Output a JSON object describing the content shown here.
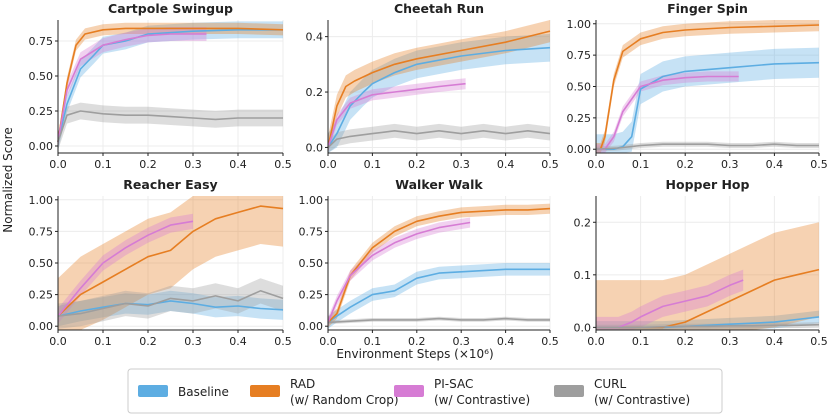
{
  "figure": {
    "ylabel": "Normalized Score",
    "xlabel": "Environment Steps (×10⁶)",
    "x_ticks": [
      "0.0",
      "0.1",
      "0.2",
      "0.3",
      "0.4",
      "0.5"
    ]
  },
  "colors": {
    "Baseline": "#5dade2",
    "RAD": "#e67e22",
    "PI-SAC": "#d67cd4",
    "CURL": "#9e9e9e"
  },
  "legend": [
    {
      "key": "Baseline",
      "line1": "Baseline",
      "line2": ""
    },
    {
      "key": "RAD",
      "line1": "RAD",
      "line2": "(w/ Random Crop)"
    },
    {
      "key": "PI-SAC",
      "line1": "PI-SAC",
      "line2": "(w/ Contrastive)"
    },
    {
      "key": "CURL",
      "line1": "CURL",
      "line2": "(w/ Contrastive)"
    }
  ],
  "chart_data": [
    {
      "type": "line",
      "title": "Cartpole Swingup",
      "xlim": [
        0,
        0.5
      ],
      "ylim": [
        -0.05,
        0.9
      ],
      "yticks": [
        0,
        0.25,
        0.5,
        0.75
      ],
      "ytick_labels": [
        "0.00",
        "0.25",
        "0.50",
        "0.75"
      ],
      "series": [
        {
          "name": "Baseline",
          "x": [
            0,
            0.02,
            0.05,
            0.08,
            0.1,
            0.15,
            0.2,
            0.3,
            0.4,
            0.5
          ],
          "y": [
            0.03,
            0.3,
            0.55,
            0.65,
            0.72,
            0.75,
            0.8,
            0.82,
            0.83,
            0.83
          ],
          "band": 0.06
        },
        {
          "name": "RAD",
          "x": [
            0,
            0.02,
            0.04,
            0.06,
            0.1,
            0.15,
            0.2,
            0.3,
            0.4,
            0.5
          ],
          "y": [
            0.03,
            0.45,
            0.72,
            0.8,
            0.83,
            0.84,
            0.84,
            0.84,
            0.84,
            0.83
          ],
          "band": 0.04
        },
        {
          "name": "PI-SAC",
          "x": [
            0,
            0.02,
            0.05,
            0.1,
            0.15,
            0.2,
            0.25,
            0.33
          ],
          "y": [
            0.03,
            0.4,
            0.62,
            0.72,
            0.76,
            0.79,
            0.8,
            0.8
          ],
          "band": 0.05
        },
        {
          "name": "CURL",
          "x": [
            0,
            0.02,
            0.05,
            0.1,
            0.15,
            0.2,
            0.25,
            0.3,
            0.35,
            0.4,
            0.45,
            0.5
          ],
          "y": [
            0.03,
            0.22,
            0.25,
            0.23,
            0.22,
            0.22,
            0.21,
            0.2,
            0.19,
            0.2,
            0.2,
            0.2
          ],
          "band": 0.06
        }
      ]
    },
    {
      "type": "line",
      "title": "Cheetah Run",
      "xlim": [
        0,
        0.5
      ],
      "ylim": [
        -0.02,
        0.46
      ],
      "yticks": [
        0,
        0.2,
        0.4
      ],
      "ytick_labels": [
        "0.0",
        "0.2",
        "0.4"
      ],
      "series": [
        {
          "name": "Baseline",
          "x": [
            0,
            0.02,
            0.05,
            0.08,
            0.1,
            0.15,
            0.2,
            0.3,
            0.4,
            0.5
          ],
          "y": [
            0.0,
            0.05,
            0.15,
            0.2,
            0.23,
            0.27,
            0.3,
            0.33,
            0.35,
            0.36
          ],
          "band": 0.05
        },
        {
          "name": "RAD",
          "x": [
            0,
            0.02,
            0.04,
            0.06,
            0.1,
            0.15,
            0.2,
            0.3,
            0.4,
            0.5
          ],
          "y": [
            0.0,
            0.15,
            0.22,
            0.24,
            0.27,
            0.3,
            0.32,
            0.35,
            0.38,
            0.42
          ],
          "band": 0.04
        },
        {
          "name": "PI-SAC",
          "x": [
            0,
            0.02,
            0.05,
            0.1,
            0.15,
            0.2,
            0.25,
            0.31
          ],
          "y": [
            0.0,
            0.1,
            0.16,
            0.19,
            0.2,
            0.21,
            0.22,
            0.23
          ],
          "band": 0.02
        },
        {
          "name": "CURL",
          "x": [
            0,
            0.02,
            0.05,
            0.1,
            0.15,
            0.2,
            0.25,
            0.3,
            0.35,
            0.4,
            0.45,
            0.5
          ],
          "y": [
            0.0,
            0.03,
            0.04,
            0.05,
            0.06,
            0.05,
            0.06,
            0.05,
            0.06,
            0.05,
            0.06,
            0.05
          ],
          "band": 0.025
        }
      ]
    },
    {
      "type": "line",
      "title": "Finger Spin",
      "xlim": [
        0,
        0.5
      ],
      "ylim": [
        -0.03,
        1.03
      ],
      "yticks": [
        0,
        0.25,
        0.5,
        0.75,
        1.0
      ],
      "ytick_labels": [
        "0.00",
        "0.25",
        "0.50",
        "0.75",
        "1.00"
      ],
      "series": [
        {
          "name": "Baseline",
          "x": [
            0,
            0.04,
            0.06,
            0.08,
            0.1,
            0.15,
            0.2,
            0.3,
            0.4,
            0.5
          ],
          "y": [
            0.0,
            0.0,
            0.02,
            0.1,
            0.48,
            0.58,
            0.62,
            0.65,
            0.68,
            0.69
          ],
          "band": 0.12
        },
        {
          "name": "RAD",
          "x": [
            0,
            0.01,
            0.02,
            0.04,
            0.06,
            0.1,
            0.15,
            0.2,
            0.3,
            0.4,
            0.5
          ],
          "y": [
            0.0,
            0.0,
            0.1,
            0.55,
            0.78,
            0.88,
            0.93,
            0.95,
            0.97,
            0.98,
            0.99
          ],
          "band": 0.05
        },
        {
          "name": "PI-SAC",
          "x": [
            0,
            0.02,
            0.04,
            0.06,
            0.1,
            0.15,
            0.2,
            0.25,
            0.32
          ],
          "y": [
            0.0,
            0.0,
            0.1,
            0.3,
            0.5,
            0.55,
            0.57,
            0.58,
            0.58
          ],
          "band": 0.04
        },
        {
          "name": "CURL",
          "x": [
            0,
            0.05,
            0.1,
            0.15,
            0.2,
            0.25,
            0.3,
            0.35,
            0.4,
            0.45,
            0.5
          ],
          "y": [
            0.0,
            0.01,
            0.03,
            0.04,
            0.04,
            0.04,
            0.03,
            0.03,
            0.04,
            0.03,
            0.03
          ],
          "band": 0.02
        }
      ]
    },
    {
      "type": "line",
      "title": "Reacher Easy",
      "xlim": [
        0,
        0.5
      ],
      "ylim": [
        -0.03,
        1.03
      ],
      "yticks": [
        0,
        0.25,
        0.5,
        0.75,
        1.0
      ],
      "ytick_labels": [
        "0.00",
        "0.25",
        "0.50",
        "0.75",
        "1.00"
      ],
      "series": [
        {
          "name": "Baseline",
          "x": [
            0,
            0.05,
            0.1,
            0.15,
            0.2,
            0.25,
            0.3,
            0.35,
            0.4,
            0.45,
            0.5
          ],
          "y": [
            0.08,
            0.12,
            0.15,
            0.18,
            0.17,
            0.2,
            0.18,
            0.15,
            0.16,
            0.14,
            0.13
          ],
          "band": 0.08
        },
        {
          "name": "RAD",
          "x": [
            0,
            0.05,
            0.1,
            0.15,
            0.2,
            0.25,
            0.3,
            0.35,
            0.4,
            0.45,
            0.5
          ],
          "y": [
            0.08,
            0.25,
            0.35,
            0.45,
            0.55,
            0.6,
            0.75,
            0.85,
            0.9,
            0.95,
            0.93
          ],
          "band": 0.3
        },
        {
          "name": "PI-SAC",
          "x": [
            0,
            0.05,
            0.1,
            0.15,
            0.2,
            0.25,
            0.3
          ],
          "y": [
            0.08,
            0.3,
            0.5,
            0.62,
            0.72,
            0.8,
            0.83
          ],
          "band": 0.06
        },
        {
          "name": "CURL",
          "x": [
            0,
            0.05,
            0.1,
            0.15,
            0.2,
            0.25,
            0.3,
            0.35,
            0.4,
            0.45,
            0.5
          ],
          "y": [
            0.08,
            0.1,
            0.14,
            0.18,
            0.16,
            0.22,
            0.2,
            0.24,
            0.2,
            0.28,
            0.22
          ],
          "band": 0.1
        }
      ]
    },
    {
      "type": "line",
      "title": "Walker Walk",
      "xlim": [
        0,
        0.5
      ],
      "ylim": [
        -0.03,
        1.03
      ],
      "yticks": [
        0,
        0.25,
        0.5,
        0.75,
        1.0
      ],
      "ytick_labels": [
        "0.00",
        "0.25",
        "0.50",
        "0.75",
        "1.00"
      ],
      "series": [
        {
          "name": "Baseline",
          "x": [
            0,
            0.02,
            0.05,
            0.1,
            0.15,
            0.2,
            0.25,
            0.3,
            0.35,
            0.4,
            0.45,
            0.5
          ],
          "y": [
            0.03,
            0.08,
            0.15,
            0.25,
            0.28,
            0.38,
            0.42,
            0.43,
            0.44,
            0.45,
            0.45,
            0.45
          ],
          "band": 0.05
        },
        {
          "name": "RAD",
          "x": [
            0,
            0.02,
            0.05,
            0.1,
            0.15,
            0.2,
            0.25,
            0.3,
            0.35,
            0.4,
            0.45,
            0.5
          ],
          "y": [
            0.03,
            0.1,
            0.4,
            0.62,
            0.75,
            0.83,
            0.87,
            0.9,
            0.91,
            0.92,
            0.92,
            0.93
          ],
          "band": 0.04
        },
        {
          "name": "PI-SAC",
          "x": [
            0,
            0.02,
            0.05,
            0.1,
            0.15,
            0.2,
            0.25,
            0.32
          ],
          "y": [
            0.03,
            0.2,
            0.4,
            0.56,
            0.66,
            0.73,
            0.78,
            0.82
          ],
          "band": 0.04
        },
        {
          "name": "CURL",
          "x": [
            0,
            0.05,
            0.1,
            0.15,
            0.2,
            0.25,
            0.3,
            0.35,
            0.4,
            0.45,
            0.5
          ],
          "y": [
            0.03,
            0.04,
            0.05,
            0.05,
            0.05,
            0.06,
            0.05,
            0.05,
            0.06,
            0.05,
            0.05
          ],
          "band": 0.015
        }
      ]
    },
    {
      "type": "line",
      "title": "Hopper Hop",
      "xlim": [
        0,
        0.5
      ],
      "ylim": [
        -0.005,
        0.25
      ],
      "yticks": [
        0,
        0.1,
        0.2
      ],
      "ytick_labels": [
        "0.0",
        "0.1",
        "0.2"
      ],
      "series": [
        {
          "name": "Baseline",
          "x": [
            0,
            0.05,
            0.1,
            0.15,
            0.2,
            0.25,
            0.3,
            0.35,
            0.4,
            0.45,
            0.5
          ],
          "y": [
            0.0,
            0.0,
            0.0,
            0.0,
            0.002,
            0.004,
            0.006,
            0.008,
            0.01,
            0.015,
            0.02
          ],
          "band": 0.012
        },
        {
          "name": "RAD",
          "x": [
            0,
            0.15,
            0.2,
            0.25,
            0.3,
            0.35,
            0.4,
            0.45,
            0.5
          ],
          "y": [
            0.0,
            0.0,
            0.01,
            0.03,
            0.05,
            0.07,
            0.09,
            0.1,
            0.11
          ],
          "band": 0.09
        },
        {
          "name": "PI-SAC",
          "x": [
            0,
            0.05,
            0.08,
            0.1,
            0.15,
            0.2,
            0.25,
            0.3,
            0.33
          ],
          "y": [
            0.0,
            0.0,
            0.01,
            0.02,
            0.04,
            0.05,
            0.06,
            0.08,
            0.09
          ],
          "band": 0.02
        },
        {
          "name": "CURL",
          "x": [
            0,
            0.1,
            0.15,
            0.2,
            0.25,
            0.3,
            0.35,
            0.4,
            0.45,
            0.5
          ],
          "y": [
            0.0,
            0.0,
            0.001,
            0.002,
            0.002,
            0.003,
            0.003,
            0.004,
            0.004,
            0.005
          ],
          "band": 0.005
        }
      ]
    }
  ]
}
